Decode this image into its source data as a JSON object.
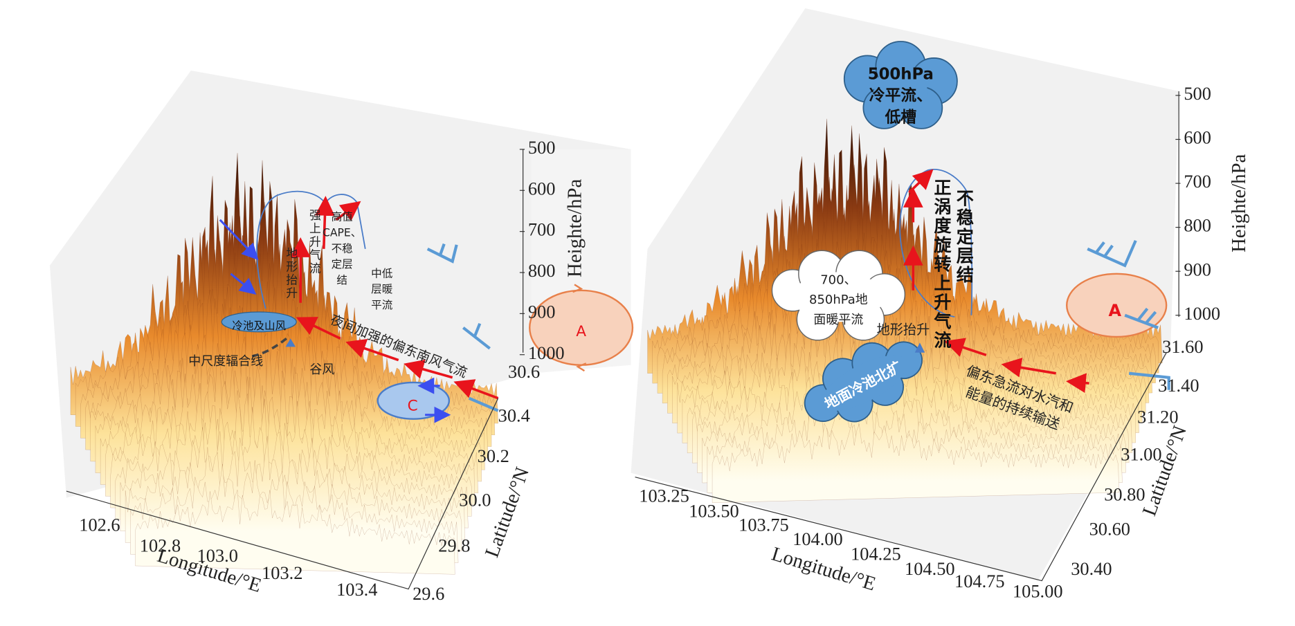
{
  "panels": [
    {
      "axes": {
        "x_label": "Longitude/°E",
        "x_ticks": [
          "102.6",
          "102.8",
          "103.0",
          "103.2",
          "103.4"
        ],
        "y_label": "Latitude/°N",
        "y_ticks": [
          "30.6",
          "30.4",
          "30.2",
          "30.0",
          "29.8",
          "29.6"
        ],
        "z_label": "Heighte/hPa",
        "z_ticks": [
          "500",
          "600",
          "700",
          "800",
          "900",
          "1000"
        ]
      },
      "annotations": [
        [
          "地形抬升"
        ],
        [
          "强上升气流"
        ],
        [
          "高值",
          "CAPE、",
          "不稳",
          "定层",
          "结"
        ],
        [
          "中低",
          "层暖",
          "平流"
        ],
        [
          "冷池及山风"
        ],
        [
          "夜间加强的偏东南风气流"
        ],
        [
          "中尺度辐合线"
        ],
        [
          "谷风"
        ],
        [
          "A"
        ],
        [
          "C"
        ]
      ]
    },
    {
      "axes": {
        "x_label": "Longitude/°E",
        "x_ticks": [
          "103.25",
          "103.50",
          "103.75",
          "104.00",
          "104.25",
          "104.50",
          "104.75",
          "105.00"
        ],
        "y_label": "Latitude/°N",
        "y_ticks": [
          "31.60",
          "31.40",
          "31.20",
          "31.00",
          "30.80",
          "30.60",
          "30.40"
        ],
        "z_label": "Heighte/hPa",
        "z_ticks": [
          "500",
          "600",
          "700",
          "800",
          "900",
          "1000"
        ]
      },
      "annotations": [
        [
          "500hPa",
          "冷平流、",
          "低槽"
        ],
        [
          "不稳定层结"
        ],
        [
          "正涡度旋转上升气流"
        ],
        [
          "700、",
          "850hPa地",
          "面暖平流"
        ],
        [
          "地形抬升"
        ],
        [
          "地面冷池北扩"
        ],
        [
          "偏东急流对水汽和",
          "能量的持续输送"
        ],
        [
          "A"
        ]
      ]
    }
  ]
}
